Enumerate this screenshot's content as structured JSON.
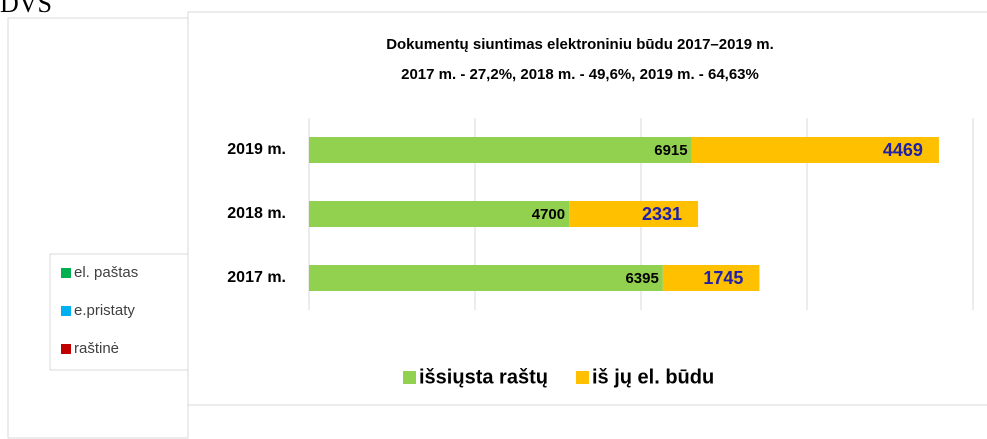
{
  "page_title": "DVS",
  "side_legend": [
    "el. paštas",
    "e.pristaty",
    "raštinė"
  ],
  "side_legend_colors": [
    "#00b050",
    "#00b0f0",
    "#c00000"
  ],
  "chart_data": {
    "type": "stacked-barh",
    "title": "Dokumentų siuntimas elektroniniu būdu  2017–2019 m.",
    "subtitle": "2017 m. - 27,2%, 2018 m. - 49,6%, 2019 m. - 64,63%",
    "categories": [
      "2017 m.",
      "2018 m.",
      "2019 m."
    ],
    "series": [
      {
        "name": "išsiųsta raštų",
        "color": "#92d050",
        "label_color": "#000000",
        "values": [
          6395,
          4700,
          6915
        ]
      },
      {
        "name": "iš jų el. būdu",
        "color": "#ffc000",
        "label_color": "#1f1fa8",
        "values": [
          1745,
          2331,
          4469
        ]
      }
    ],
    "xlim": [
      0,
      12000
    ],
    "xticks": [
      0,
      3000,
      6000,
      9000,
      12000
    ],
    "grid": true,
    "legend": "bottom"
  }
}
